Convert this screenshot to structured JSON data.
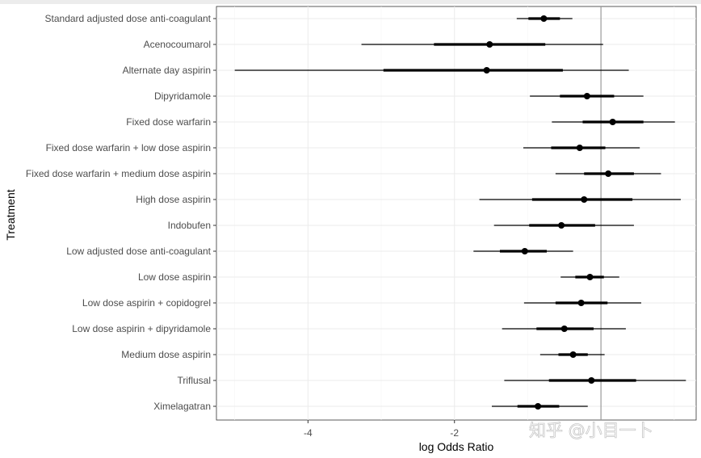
{
  "chart_data": {
    "type": "forest",
    "title": "",
    "xlabel": "log Odds Ratio",
    "ylabel": "Treatment",
    "xlim": [
      -5.25,
      1.3
    ],
    "x_ticks": [
      -4,
      -2
    ],
    "x_tick_labels": [
      "-4",
      "-2"
    ],
    "reference_line": 0,
    "grid": true,
    "categories": [
      "Standard adjusted dose anti-coagulant",
      "Acenocoumarol",
      "Alternate day aspirin",
      "Dipyridamole",
      "Fixed dose warfarin",
      "Fixed dose warfarin + low dose aspirin",
      "Fixed dose warfarin + medium dose aspirin",
      "High dose aspirin",
      "Indobufen",
      "Low adjusted dose anti-coagulant",
      "Low dose aspirin",
      "Low dose aspirin + copidogrel",
      "Low dose aspirin + dipyridamole",
      "Medium dose aspirin",
      "Triflusal",
      "Ximelagatran"
    ],
    "estimates": [
      -0.78,
      -1.52,
      -1.56,
      -0.19,
      0.16,
      -0.29,
      0.1,
      -0.23,
      -0.54,
      -1.04,
      -0.15,
      -0.27,
      -0.5,
      -0.38,
      -0.13,
      -0.86
    ],
    "inner_low": [
      -0.99,
      -2.28,
      -2.97,
      -0.56,
      -0.25,
      -0.68,
      -0.23,
      -0.94,
      -0.98,
      -1.38,
      -0.35,
      -0.62,
      -0.88,
      -0.58,
      -0.71,
      -1.14
    ],
    "inner_high": [
      -0.56,
      -0.76,
      -0.52,
      0.18,
      0.58,
      0.06,
      0.45,
      0.43,
      -0.08,
      -0.74,
      0.04,
      0.09,
      -0.1,
      -0.18,
      0.48,
      -0.57
    ],
    "outer_low": [
      -1.15,
      -3.27,
      -5.0,
      -0.97,
      -0.67,
      -1.06,
      -0.62,
      -1.66,
      -1.46,
      -1.74,
      -0.55,
      -1.05,
      -1.35,
      -0.83,
      -1.32,
      -1.49
    ],
    "outer_high": [
      -0.39,
      0.03,
      0.38,
      0.58,
      1.01,
      0.53,
      0.82,
      1.09,
      0.45,
      -0.38,
      0.25,
      0.55,
      0.34,
      0.05,
      1.16,
      -0.18
    ]
  },
  "watermark": "知乎 @小目一卜"
}
